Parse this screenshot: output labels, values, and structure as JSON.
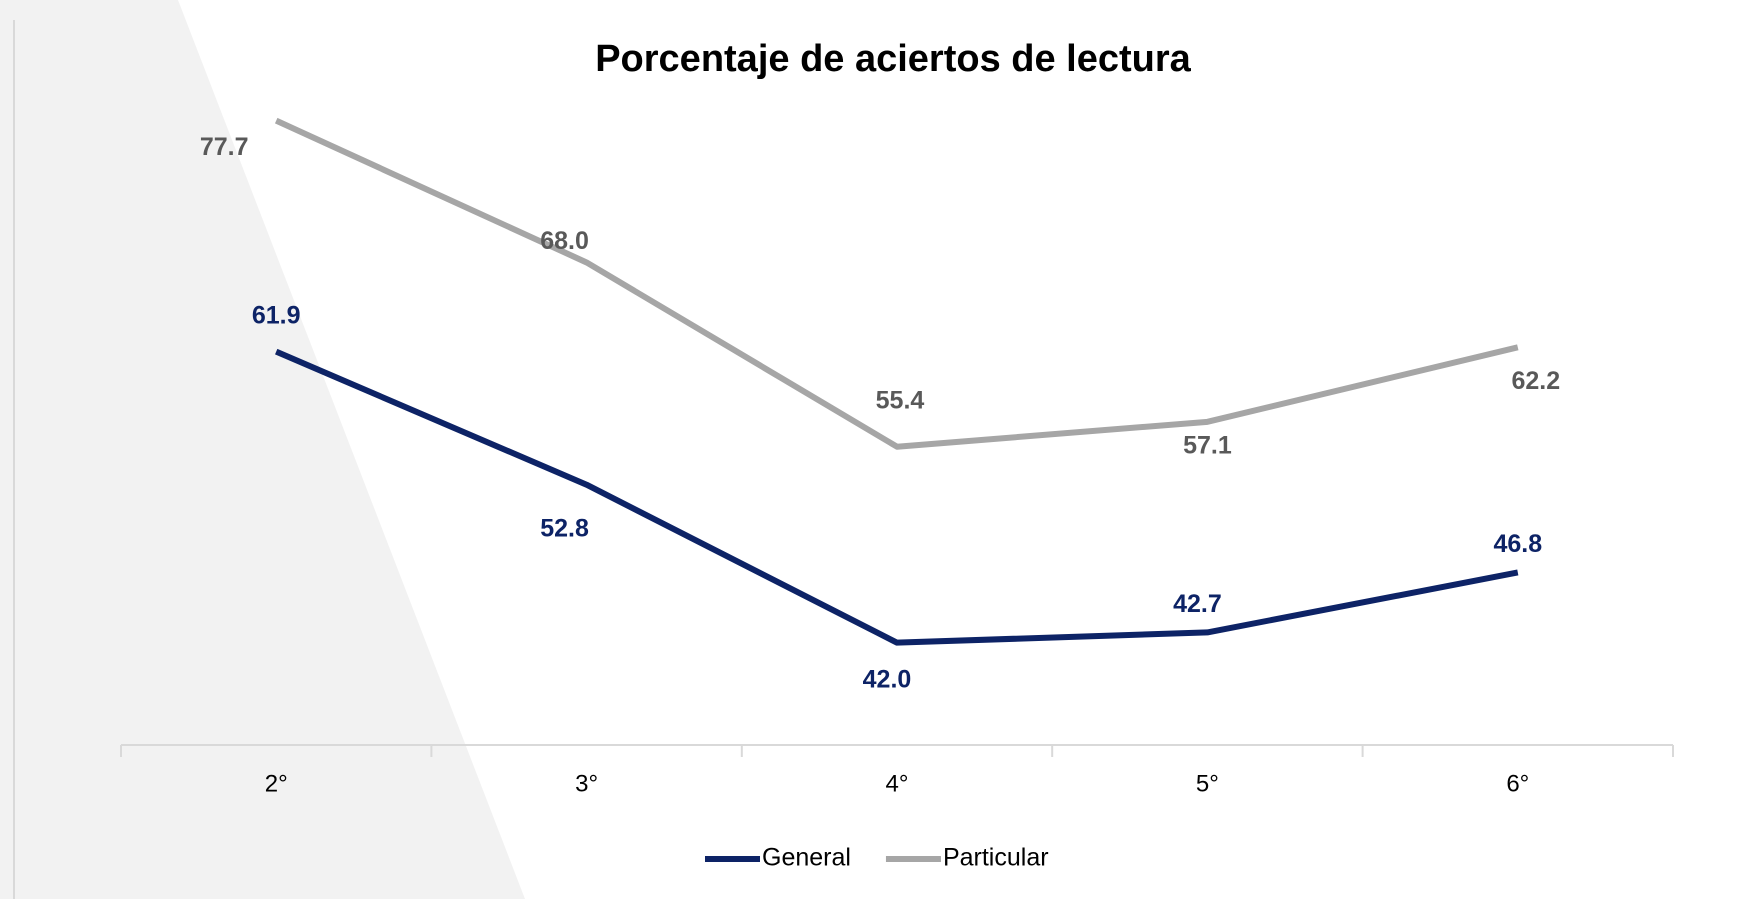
{
  "chart_data": {
    "type": "line",
    "title": "Porcentaje de aciertos de lectura",
    "categories": [
      "2°",
      "3°",
      "4°",
      "5°",
      "6°"
    ],
    "series": [
      {
        "name": "General",
        "color": "#0d2366",
        "values": [
          61.9,
          52.8,
          42.0,
          42.7,
          46.8
        ],
        "value_labels": [
          "61.9",
          "52.8",
          "42.0",
          "42.7",
          "46.8"
        ]
      },
      {
        "name": "Particular",
        "color": "#a6a6a6",
        "values": [
          77.7,
          68.0,
          55.4,
          57.1,
          62.2
        ],
        "value_labels": [
          "77.7",
          "68.0",
          "55.4",
          "57.1",
          "62.2"
        ]
      }
    ],
    "ylim": [
      35,
      80
    ],
    "legend": "bottom"
  }
}
